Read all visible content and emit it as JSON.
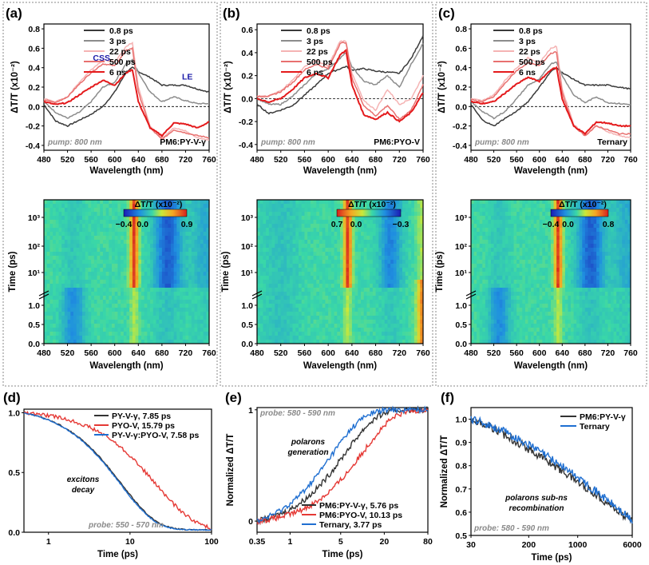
{
  "colors": {
    "grey08": "#3a3a3a",
    "grey3": "#8c8c8c",
    "pink22": "#f5b4b4",
    "red500": "#e8706f",
    "red6ns": "#e41a1c",
    "black": "#333333",
    "red": "#e53935",
    "blue": "#1f6fd1",
    "label_blue": "#1a1aa8"
  },
  "panel_a": {
    "letter": "(a)",
    "sample": "PM6:PY-V-γ",
    "pump": "pump: 800 nm",
    "ylabel": "ΔT/T (x10⁻²)",
    "xlabel": "Wavelength (nm)",
    "yticks": [
      "0.8",
      "0.6",
      "0.4",
      "0.2",
      "0.0",
      "-0.2",
      "-0.4"
    ],
    "xticks": [
      "480",
      "520",
      "560",
      "600",
      "640",
      "680",
      "720",
      "760"
    ],
    "legend": [
      "0.8 ps",
      "3 ps",
      "22 ps",
      "500 ps",
      "6 ns"
    ],
    "css_label": "CSS",
    "le_label": "LE",
    "map_ylabel": "Time (ps)",
    "map_xlabel": "Wavelength (nm)",
    "colorbar_title": "ΔT/T (x10⁻²)",
    "colorbar_ticks": [
      "−0.4",
      "0.0",
      "0.9"
    ],
    "map_yticks_log": [
      "10³",
      "10²",
      "10¹"
    ],
    "map_yticks_lin": [
      "1.0",
      "0.5",
      "0.0"
    ],
    "map_xticks": [
      "480",
      "520",
      "560",
      "600",
      "640",
      "680",
      "720",
      "760"
    ]
  },
  "panel_b": {
    "letter": "(b)",
    "sample": "PM6:PYO-V",
    "pump": "pump: 800 nm",
    "ylabel": "ΔT/T (x10⁻²)",
    "xlabel": "Wavelength (nm)",
    "yticks": [
      "0.6",
      "0.4",
      "0.2",
      "0.0",
      "-0.2",
      "-0.4"
    ],
    "xticks": [
      "480",
      "520",
      "560",
      "600",
      "640",
      "680",
      "720",
      "760"
    ],
    "legend": [
      "0.8 ps",
      "3 ps",
      "22 ps",
      "500 ps",
      "6 ns"
    ],
    "map_ylabel": "Time (ps)",
    "map_xlabel": "Wavelength (nm)",
    "colorbar_title": "ΔT/T (x10⁻²)",
    "colorbar_ticks": [
      "0.7",
      "0.0",
      "−0.3"
    ],
    "map_yticks_log": [
      "10³",
      "10²",
      "10¹"
    ],
    "map_yticks_lin": [
      "1.0",
      "0.5",
      "0.0"
    ],
    "map_xticks": [
      "480",
      "520",
      "560",
      "600",
      "640",
      "680",
      "720",
      "760"
    ]
  },
  "panel_c": {
    "letter": "(c)",
    "sample": "Ternary",
    "pump": "pump: 800 nm",
    "ylabel": "ΔT/T (x10⁻²)",
    "xlabel": "Wavelength (nm)",
    "yticks": [
      "0.8",
      "0.6",
      "0.4",
      "0.2",
      "0.0",
      "-0.2",
      "-0.4"
    ],
    "xticks": [
      "480",
      "520",
      "560",
      "600",
      "640",
      "680",
      "720",
      "760"
    ],
    "legend": [
      "0.8 ps",
      "3 ps",
      "22 ps",
      "500 ps",
      "6 ns"
    ],
    "map_ylabel": "Time (ps)",
    "map_xlabel": "Wavelength (nm)",
    "colorbar_title": "ΔT/T (x10⁻²)",
    "colorbar_ticks": [
      "−0.4",
      "0.0",
      "0.8"
    ],
    "map_yticks_log": [
      "10³",
      "10²",
      "10¹"
    ],
    "map_yticks_lin": [
      "1.0",
      "0.5",
      "0.0"
    ],
    "map_xticks": [
      "480",
      "520",
      "560",
      "600",
      "640",
      "680",
      "720",
      "760"
    ]
  },
  "panel_d": {
    "letter": "(d)",
    "ylabel": "Normalized ΔT/T",
    "xlabel": "Time (ps)",
    "yticks": [
      "1.0",
      "0.5",
      "0.0"
    ],
    "xticks": [
      "1",
      "10",
      "100"
    ],
    "legend": [
      "PY-V-γ, 7.85 ps",
      "PYO-V, 15.79 ps",
      "PY-V-γ:PYO-V, 7.58 ps"
    ],
    "note1": "excitons",
    "note2": "decay",
    "probe": "probe: 550 - 570 nm"
  },
  "panel_e": {
    "letter": "(e)",
    "ylabel": "Normalized ΔT/T",
    "xlabel": "Time (ps)",
    "yticks": [
      "1",
      "0"
    ],
    "xticks": [
      "0.35",
      "1",
      "5",
      "20",
      "80"
    ],
    "legend": [
      "PM6:PY-V-γ, 5.76 ps",
      "PM6:PYO-V, 10.13 ps",
      "Ternary, 3.77 ps"
    ],
    "note1": "polarons",
    "note2": "generation",
    "probe": "probe: 580 - 590 nm"
  },
  "panel_f": {
    "letter": "(f)",
    "ylabel": "Normalized ΔT/T",
    "xlabel": "Time (ps)",
    "yticks": [
      "1.0",
      "0.9",
      "0.8",
      "0.7",
      "0.6",
      "0.5"
    ],
    "xticks": [
      "30",
      "200",
      "1000",
      "6000"
    ],
    "legend": [
      "PM6:PY-V-γ",
      "Ternary"
    ],
    "note1": "polarons sub-ns",
    "note2": "recombination",
    "probe": "probe: 580 - 590 nm"
  },
  "chart_data": [
    {
      "type": "line",
      "panel": "a",
      "title": "PM6:PY-V-γ",
      "xlabel": "Wavelength (nm)",
      "ylabel": "ΔT/T (x10⁻²)",
      "xlim": [
        480,
        760
      ],
      "ylim": [
        -0.45,
        0.85
      ],
      "x": [
        480,
        500,
        520,
        540,
        560,
        580,
        600,
        620,
        630,
        640,
        660,
        680,
        700,
        720,
        740,
        760
      ],
      "series": [
        {
          "name": "0.8 ps",
          "values": [
            0.02,
            -0.15,
            -0.2,
            -0.14,
            -0.08,
            0.0,
            0.15,
            0.36,
            0.4,
            0.36,
            0.3,
            0.22,
            0.22,
            0.22,
            0.18,
            0.15
          ]
        },
        {
          "name": "3 ps",
          "values": [
            0.05,
            -0.06,
            -0.12,
            -0.06,
            0.05,
            0.2,
            0.25,
            0.45,
            0.48,
            0.35,
            0.15,
            0.05,
            0.1,
            0.06,
            0.03,
            0.03
          ]
        },
        {
          "name": "22 ps",
          "values": [
            0.08,
            0.05,
            0.1,
            0.25,
            0.38,
            0.48,
            0.46,
            0.62,
            0.66,
            0.2,
            -0.2,
            -0.33,
            -0.22,
            -0.25,
            -0.32,
            -0.35
          ]
        },
        {
          "name": "500 ps",
          "values": [
            0.07,
            0.04,
            0.1,
            0.23,
            0.35,
            0.44,
            0.42,
            0.58,
            0.6,
            0.15,
            -0.22,
            -0.34,
            -0.24,
            -0.27,
            -0.3,
            -0.32
          ]
        },
        {
          "name": "6 ns",
          "values": [
            0.05,
            0.02,
            0.04,
            0.12,
            0.2,
            0.27,
            0.22,
            0.35,
            0.38,
            0.05,
            -0.22,
            -0.3,
            -0.17,
            -0.18,
            -0.22,
            -0.16
          ]
        }
      ]
    },
    {
      "type": "line",
      "panel": "b",
      "title": "PM6:PYO-V",
      "xlabel": "Wavelength (nm)",
      "ylabel": "ΔT/T (x10⁻²)",
      "xlim": [
        480,
        760
      ],
      "ylim": [
        -0.45,
        0.65
      ],
      "x": [
        480,
        500,
        520,
        540,
        560,
        580,
        600,
        620,
        630,
        640,
        660,
        680,
        700,
        720,
        740,
        760
      ],
      "series": [
        {
          "name": "0.8 ps",
          "values": [
            -0.05,
            -0.13,
            -0.1,
            -0.06,
            0.03,
            0.12,
            0.22,
            0.26,
            0.28,
            0.25,
            0.26,
            0.24,
            0.23,
            0.22,
            0.35,
            0.55
          ]
        },
        {
          "name": "3 ps",
          "values": [
            0.0,
            -0.05,
            -0.05,
            0.02,
            0.12,
            0.22,
            0.26,
            0.35,
            0.4,
            0.28,
            0.15,
            0.12,
            0.2,
            0.1,
            0.3,
            0.48
          ]
        },
        {
          "name": "22 ps",
          "values": [
            0.02,
            0.02,
            0.07,
            0.16,
            0.28,
            0.33,
            0.28,
            0.5,
            0.5,
            0.22,
            -0.02,
            -0.1,
            0.08,
            -0.05,
            0.0,
            0.2
          ]
        },
        {
          "name": "500 ps",
          "values": [
            0.02,
            0.02,
            0.06,
            0.14,
            0.25,
            0.3,
            0.26,
            0.48,
            0.49,
            0.18,
            -0.06,
            -0.15,
            -0.06,
            -0.18,
            -0.1,
            0.12
          ]
        },
        {
          "name": "6 ns",
          "values": [
            0.0,
            -0.03,
            0.0,
            0.08,
            0.18,
            0.22,
            0.18,
            0.38,
            0.42,
            0.12,
            -0.14,
            -0.18,
            -0.12,
            -0.2,
            -0.12,
            0.05
          ]
        }
      ]
    },
    {
      "type": "line",
      "panel": "c",
      "title": "Ternary",
      "xlabel": "Wavelength (nm)",
      "ylabel": "ΔT/T (x10⁻²)",
      "xlim": [
        480,
        760
      ],
      "ylim": [
        -0.45,
        0.85
      ],
      "x": [
        480,
        500,
        520,
        540,
        560,
        580,
        600,
        620,
        630,
        640,
        660,
        680,
        700,
        720,
        740,
        760
      ],
      "series": [
        {
          "name": "0.8 ps",
          "values": [
            0.02,
            -0.14,
            -0.2,
            -0.12,
            -0.05,
            0.05,
            0.2,
            0.36,
            0.4,
            0.35,
            0.28,
            0.22,
            0.22,
            0.22,
            0.2,
            0.18
          ]
        },
        {
          "name": "3 ps",
          "values": [
            0.05,
            -0.05,
            -0.12,
            -0.05,
            0.08,
            0.22,
            0.28,
            0.44,
            0.46,
            0.32,
            0.12,
            0.04,
            0.1,
            0.04,
            0.03,
            0.02
          ]
        },
        {
          "name": "22 ps",
          "values": [
            0.08,
            0.06,
            0.12,
            0.27,
            0.4,
            0.5,
            0.45,
            0.6,
            0.62,
            0.18,
            -0.18,
            -0.3,
            -0.2,
            -0.26,
            -0.3,
            -0.32
          ]
        },
        {
          "name": "500 ps",
          "values": [
            0.07,
            0.05,
            0.1,
            0.24,
            0.37,
            0.45,
            0.42,
            0.55,
            0.56,
            0.14,
            -0.2,
            -0.3,
            -0.2,
            -0.24,
            -0.28,
            -0.28
          ]
        },
        {
          "name": "6 ns",
          "values": [
            0.05,
            0.03,
            0.05,
            0.14,
            0.23,
            0.3,
            0.26,
            0.38,
            0.4,
            0.08,
            -0.2,
            -0.28,
            -0.16,
            -0.17,
            -0.2,
            -0.2
          ]
        }
      ]
    },
    {
      "type": "line",
      "panel": "d",
      "xscale": "log",
      "xlabel": "Time (ps)",
      "ylabel": "Normalized ΔT/T",
      "xlim": [
        0.5,
        100
      ],
      "ylim": [
        0,
        1.03
      ],
      "series": [
        {
          "name": "PY-V-γ, 7.85 ps",
          "tau": 7.85
        },
        {
          "name": "PYO-V, 15.79 ps",
          "tau": 15.79
        },
        {
          "name": "PY-V-γ:PYO-V, 7.58 ps",
          "tau": 7.58
        }
      ],
      "annotation": "excitons decay",
      "probe": "probe: 550 - 570 nm"
    },
    {
      "type": "line",
      "panel": "e",
      "xscale": "log",
      "xlabel": "Time (ps)",
      "ylabel": "Normalized ΔT/T",
      "xlim": [
        0.35,
        80
      ],
      "ylim": [
        -0.1,
        1.02
      ],
      "series": [
        {
          "name": "PM6:PY-V-γ, 5.76 ps",
          "tau": 5.76
        },
        {
          "name": "PM6:PYO-V, 10.13 ps",
          "tau": 10.13
        },
        {
          "name": "Ternary, 3.77 ps",
          "tau": 3.77
        }
      ],
      "annotation": "polarons generation",
      "probe": "probe: 580 - 590 nm"
    },
    {
      "type": "line",
      "panel": "f",
      "xscale": "log",
      "xlabel": "Time (ps)",
      "ylabel": "Normalized ΔT/T",
      "xlim": [
        30,
        6000
      ],
      "ylim": [
        0.5,
        1.05
      ],
      "series": [
        {
          "name": "PM6:PY-V-γ",
          "start": 1.0,
          "end": 0.56
        },
        {
          "name": "Ternary",
          "start": 1.0,
          "end": 0.56
        }
      ],
      "annotation": "polarons sub-ns recombination",
      "probe": "probe: 580 - 590 nm"
    },
    {
      "type": "heatmap",
      "panel": "a",
      "xlim": [
        480,
        760
      ],
      "ylabel": "Time (ps)",
      "colorbar": [
        -0.4,
        0.0,
        0.9
      ],
      "features": [
        {
          "wavelength": 633,
          "sign": "positive"
        },
        {
          "wavelength": 690,
          "sign": "negative"
        },
        {
          "wavelength": 530,
          "sign": "negative"
        }
      ]
    },
    {
      "type": "heatmap",
      "panel": "b",
      "xlim": [
        480,
        760
      ],
      "ylabel": "Time (ps)",
      "colorbar": [
        0.7,
        0.0,
        -0.3
      ],
      "features": [
        {
          "wavelength": 633,
          "sign": "positive"
        },
        {
          "wavelength": 700,
          "sign": "negative"
        },
        {
          "wavelength": 760,
          "sign": "positive"
        }
      ]
    },
    {
      "type": "heatmap",
      "panel": "c",
      "xlim": [
        480,
        760
      ],
      "ylabel": "Time (ps)",
      "colorbar": [
        -0.4,
        0.0,
        0.8
      ],
      "features": [
        {
          "wavelength": 633,
          "sign": "positive"
        },
        {
          "wavelength": 690,
          "sign": "negative"
        },
        {
          "wavelength": 530,
          "sign": "negative"
        }
      ]
    }
  ]
}
